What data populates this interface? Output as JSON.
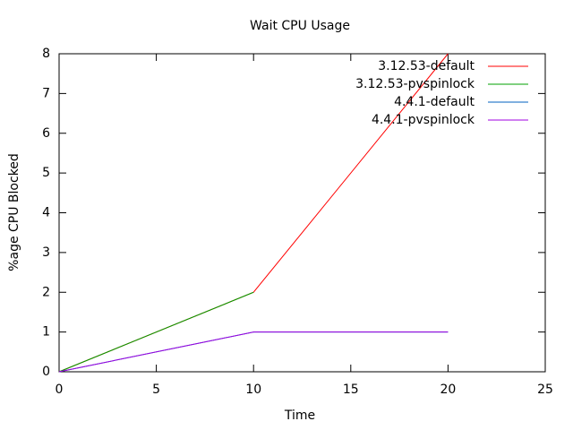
{
  "chart_data": {
    "type": "line",
    "title": "Wait CPU Usage",
    "x_label": "Time",
    "y_label": "%age CPU Blocked",
    "x": [
      0,
      10,
      20
    ],
    "series": [
      {
        "name": "3.12.53-default",
        "color": "#ff0000",
        "values": [
          0,
          2,
          8
        ]
      },
      {
        "name": "3.12.53-pvspinlock",
        "color": "#00a000",
        "values": [
          0,
          2,
          null
        ]
      },
      {
        "name": "4.4.1-default",
        "color": "#0060c0",
        "values": [
          0,
          1,
          1
        ]
      },
      {
        "name": "4.4.1-pvspinlock",
        "color": "#a000e0",
        "values": [
          0,
          1,
          1
        ]
      }
    ],
    "xlim": [
      0,
      25
    ],
    "xticks": [
      0,
      5,
      10,
      15,
      20,
      25
    ],
    "ylim": [
      0,
      8
    ],
    "yticks": [
      0,
      1,
      2,
      3,
      4,
      5,
      6,
      7,
      8
    ],
    "legend": "top-right"
  }
}
